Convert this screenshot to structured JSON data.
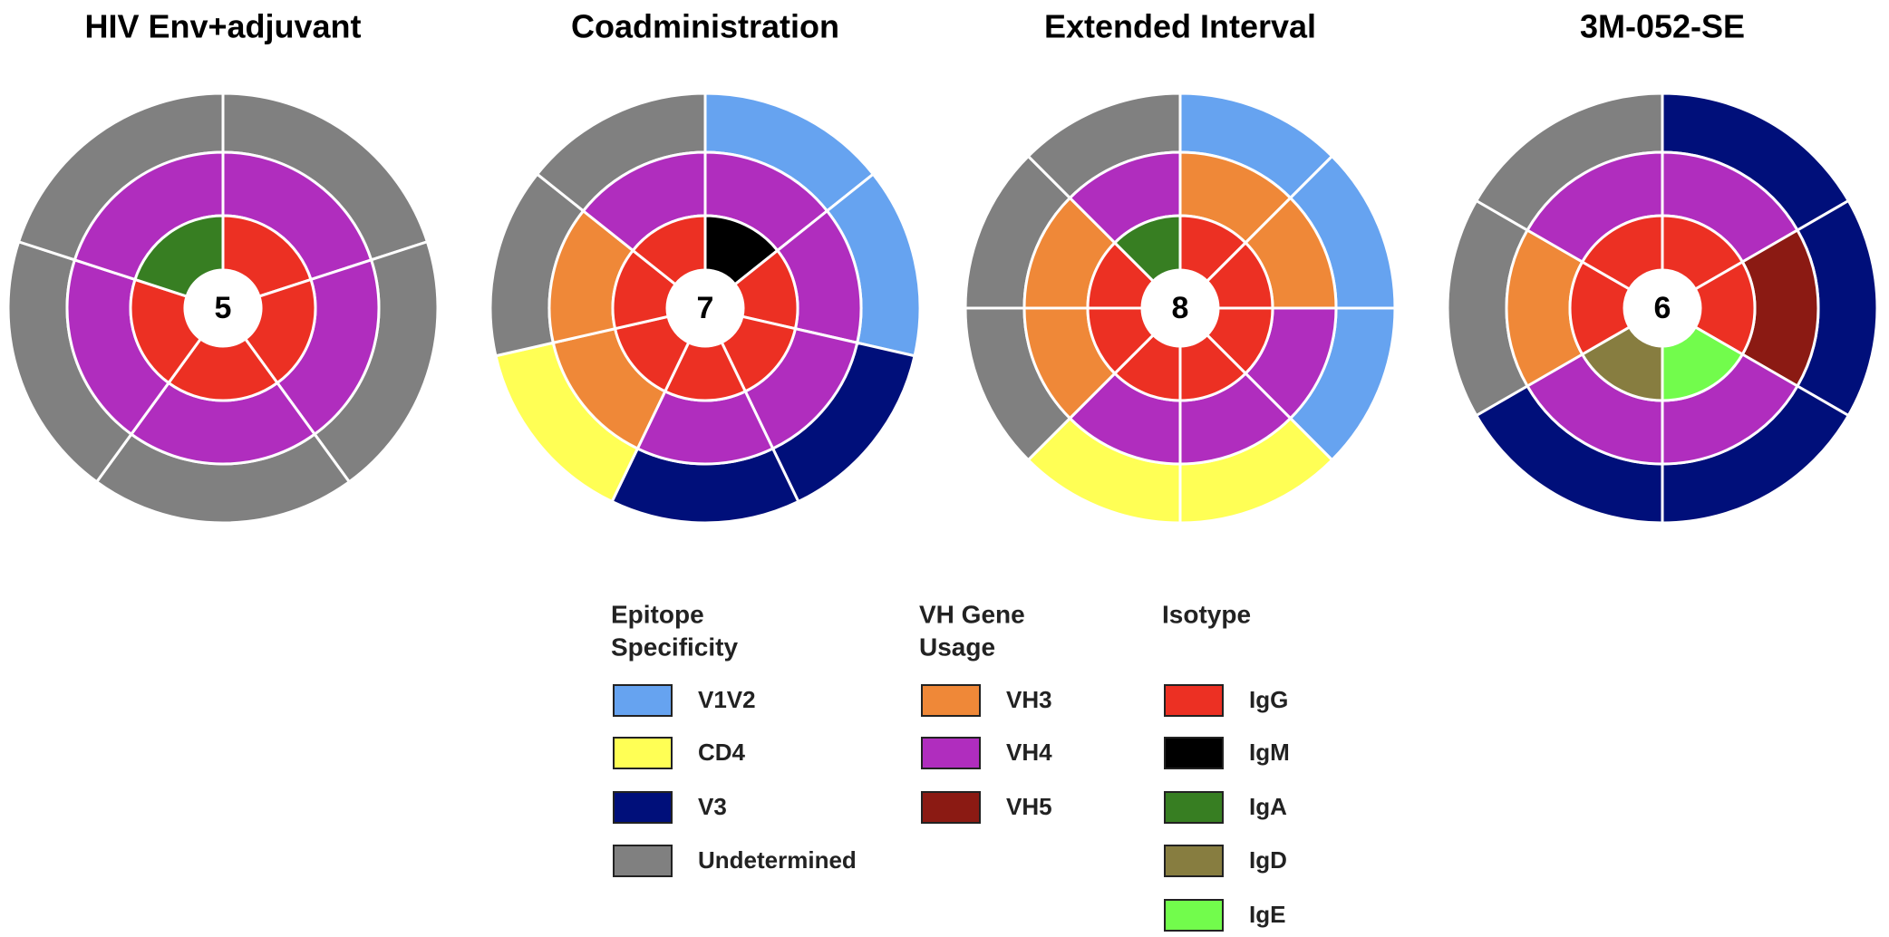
{
  "colors": {
    "V1V2": "#66a3f0",
    "CD4": "#ffff55",
    "V3": "#000f7a",
    "Undetermined": "#808080",
    "VH3": "#ef8838",
    "VH4": "#b02dbe",
    "VH5": "#8b1a13",
    "IgG": "#ec3023",
    "IgM": "#000000",
    "IgA": "#377e22",
    "IgD": "#877d40",
    "IgE": "#72fc4c"
  },
  "chart_data": [
    {
      "type": "pie",
      "title": "HIV Env+adjuvant",
      "center_count": "5",
      "antibodies": [
        {
          "isotype": "IgG",
          "vh": "VH4",
          "epitope": "Undetermined"
        },
        {
          "isotype": "IgG",
          "vh": "VH4",
          "epitope": "Undetermined"
        },
        {
          "isotype": "IgG",
          "vh": "VH4",
          "epitope": "Undetermined"
        },
        {
          "isotype": "IgG",
          "vh": "VH4",
          "epitope": "Undetermined"
        },
        {
          "isotype": "IgA",
          "vh": "VH4",
          "epitope": "Undetermined"
        }
      ]
    },
    {
      "type": "pie",
      "title": "Coadministration",
      "center_count": "7",
      "antibodies": [
        {
          "isotype": "IgM",
          "vh": "VH4",
          "epitope": "V1V2"
        },
        {
          "isotype": "IgG",
          "vh": "VH4",
          "epitope": "V1V2"
        },
        {
          "isotype": "IgG",
          "vh": "VH4",
          "epitope": "V3"
        },
        {
          "isotype": "IgG",
          "vh": "VH4",
          "epitope": "V3"
        },
        {
          "isotype": "IgG",
          "vh": "VH3",
          "epitope": "CD4"
        },
        {
          "isotype": "IgG",
          "vh": "VH3",
          "epitope": "Undetermined"
        },
        {
          "isotype": "IgG",
          "vh": "VH4",
          "epitope": "Undetermined"
        }
      ]
    },
    {
      "type": "pie",
      "title": "Extended Interval",
      "center_count": "8",
      "antibodies": [
        {
          "isotype": "IgG",
          "vh": "VH3",
          "epitope": "V1V2"
        },
        {
          "isotype": "IgG",
          "vh": "VH3",
          "epitope": "V1V2"
        },
        {
          "isotype": "IgG",
          "vh": "VH4",
          "epitope": "V1V2"
        },
        {
          "isotype": "IgG",
          "vh": "VH4",
          "epitope": "CD4"
        },
        {
          "isotype": "IgG",
          "vh": "VH4",
          "epitope": "CD4"
        },
        {
          "isotype": "IgG",
          "vh": "VH3",
          "epitope": "Undetermined"
        },
        {
          "isotype": "IgG",
          "vh": "VH3",
          "epitope": "Undetermined"
        },
        {
          "isotype": "IgA",
          "vh": "VH4",
          "epitope": "Undetermined"
        }
      ]
    },
    {
      "type": "pie",
      "title": "3M-052-SE",
      "center_count": "6",
      "antibodies": [
        {
          "isotype": "IgG",
          "vh": "VH4",
          "epitope": "V3"
        },
        {
          "isotype": "IgG",
          "vh": "VH5",
          "epitope": "V3"
        },
        {
          "isotype": "IgE",
          "vh": "VH4",
          "epitope": "V3"
        },
        {
          "isotype": "IgD",
          "vh": "VH4",
          "epitope": "V3"
        },
        {
          "isotype": "IgG",
          "vh": "VH3",
          "epitope": "Undetermined"
        },
        {
          "isotype": "IgG",
          "vh": "VH4",
          "epitope": "Undetermined"
        }
      ]
    }
  ],
  "legend": {
    "groups": [
      {
        "heading": [
          "Epitope",
          "Specificity"
        ],
        "items": [
          "V1V2",
          "CD4",
          "V3",
          "Undetermined"
        ]
      },
      {
        "heading": [
          "VH Gene",
          "Usage"
        ],
        "items": [
          "VH3",
          "VH4",
          "VH5"
        ]
      },
      {
        "heading": [
          "Isotype"
        ],
        "items": [
          "IgG",
          "IgM",
          "IgA",
          "IgD",
          "IgE"
        ]
      }
    ]
  }
}
